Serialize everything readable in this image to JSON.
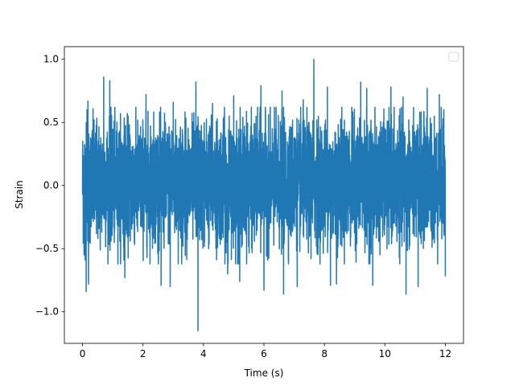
{
  "chart_data": {
    "type": "line",
    "title": "",
    "xlabel": "Time (s)",
    "ylabel": "Strain",
    "xlim": [
      -0.6,
      12.6
    ],
    "ylim": [
      -1.25,
      1.1
    ],
    "x_ticks": [
      0,
      2,
      4,
      6,
      8,
      10,
      12
    ],
    "x_tick_labels": [
      "0",
      "2",
      "4",
      "6",
      "8",
      "10",
      "12"
    ],
    "y_ticks": [
      -1.0,
      -0.5,
      0.0,
      0.5,
      1.0
    ],
    "y_tick_labels": [
      "−1.0",
      "−0.5",
      "0.0",
      "0.5",
      "1.0"
    ],
    "grid": false,
    "legend": {
      "placement": "upper right",
      "entries": []
    },
    "series": [
      {
        "color": "#1f77b4",
        "t_start": 0.0,
        "t_end": 12.0,
        "typical_range": [
          -0.4,
          0.45
        ],
        "peaks": [
          {
            "x": 0.05,
            "y": 0.58
          },
          {
            "x": 0.15,
            "y": 0.6
          },
          {
            "x": 0.18,
            "y": 0.67
          },
          {
            "x": 0.7,
            "y": 0.86
          },
          {
            "x": 0.9,
            "y": 0.83
          },
          {
            "x": 1.4,
            "y": 0.68
          },
          {
            "x": 2.1,
            "y": 0.72
          },
          {
            "x": 3.0,
            "y": 0.66
          },
          {
            "x": 3.75,
            "y": 0.82
          },
          {
            "x": 4.3,
            "y": 0.65
          },
          {
            "x": 5.0,
            "y": 0.71
          },
          {
            "x": 5.9,
            "y": 0.79
          },
          {
            "x": 6.6,
            "y": 0.75
          },
          {
            "x": 7.3,
            "y": 0.68
          },
          {
            "x": 7.65,
            "y": 1.0
          },
          {
            "x": 8.1,
            "y": 0.78
          },
          {
            "x": 8.4,
            "y": 0.79
          },
          {
            "x": 9.2,
            "y": 0.82
          },
          {
            "x": 9.4,
            "y": 0.77
          },
          {
            "x": 10.2,
            "y": 0.78
          },
          {
            "x": 10.6,
            "y": 0.7
          },
          {
            "x": 11.4,
            "y": 0.77
          },
          {
            "x": 11.8,
            "y": 0.72
          },
          {
            "x": 11.95,
            "y": 0.6
          }
        ],
        "troughs": [
          {
            "x": 0.05,
            "y": -0.55
          },
          {
            "x": 0.12,
            "y": -0.84
          },
          {
            "x": 0.2,
            "y": -0.78
          },
          {
            "x": 1.4,
            "y": -0.73
          },
          {
            "x": 2.6,
            "y": -0.79
          },
          {
            "x": 2.9,
            "y": -0.8
          },
          {
            "x": 3.82,
            "y": -1.15
          },
          {
            "x": 4.8,
            "y": -0.7
          },
          {
            "x": 5.2,
            "y": -0.76
          },
          {
            "x": 6.0,
            "y": -0.83
          },
          {
            "x": 6.65,
            "y": -0.86
          },
          {
            "x": 7.1,
            "y": -0.8
          },
          {
            "x": 8.2,
            "y": -0.79
          },
          {
            "x": 8.4,
            "y": -0.78
          },
          {
            "x": 9.6,
            "y": -0.79
          },
          {
            "x": 10.7,
            "y": -0.86
          },
          {
            "x": 11.1,
            "y": -0.8
          },
          {
            "x": 12.0,
            "y": -0.72
          }
        ]
      }
    ]
  }
}
